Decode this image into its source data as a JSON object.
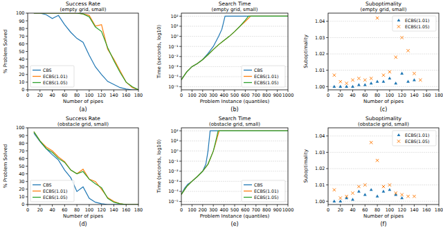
{
  "chart_data": [
    {
      "type": "line",
      "title": "Success Rate",
      "subtitle": "(empty grid, small)",
      "caption": "(a)",
      "x_label": "Number of pipes",
      "y_label": "% Problem Solved",
      "x": [
        10,
        20,
        30,
        40,
        50,
        60,
        70,
        80,
        90,
        100,
        110,
        120,
        130,
        140,
        150,
        160,
        170,
        180
      ],
      "series": [
        {
          "name": "CBS",
          "color": "#1f77b4",
          "values": [
            100,
            100,
            98,
            93,
            97,
            85,
            75,
            67,
            62,
            45,
            30,
            20,
            11,
            7,
            3,
            1,
            0,
            0
          ]
        },
        {
          "name": "ECBS(1.01)",
          "color": "#ff7f0e",
          "values": [
            100,
            100,
            100,
            100,
            100,
            100,
            100,
            100,
            99,
            97,
            83,
            85,
            53,
            40,
            25,
            10,
            3,
            0
          ]
        },
        {
          "name": "ECBS(1.05)",
          "color": "#2ca02c",
          "values": [
            100,
            100,
            100,
            100,
            100,
            100,
            100,
            100,
            99,
            95,
            82,
            76,
            55,
            38,
            23,
            10,
            4,
            0
          ]
        }
      ],
      "xlim": [
        0,
        180
      ],
      "xticks": [
        0,
        20,
        40,
        60,
        80,
        100,
        120,
        140,
        160,
        180
      ],
      "ylim": [
        0,
        100
      ],
      "yticks": [
        0,
        10,
        20,
        30,
        40,
        50,
        60,
        70,
        80,
        90,
        100
      ],
      "grid": false,
      "legend": "lower left"
    },
    {
      "type": "line",
      "title": "Search Time",
      "subtitle": "(empty grid, small)",
      "caption": "(b)",
      "x_label": "Problem Instance (quantiles)",
      "y_label": "Time (seconds, log10)",
      "log": "y",
      "series": [
        {
          "name": "CBS",
          "color": "#1f77b4",
          "x": [
            0,
            50,
            100,
            150,
            200,
            250,
            300,
            350,
            380,
            410,
            1000
          ],
          "values": [
            5e-05,
            0.0003,
            0.001,
            0.002,
            0.005,
            0.02,
            0.1,
            1,
            5,
            100,
            100
          ]
        },
        {
          "name": "ECBS(1.01)",
          "color": "#ff7f0e",
          "x": [
            0,
            50,
            100,
            150,
            200,
            250,
            300,
            350,
            400,
            450,
            500,
            550,
            600,
            650,
            1000
          ],
          "values": [
            5e-05,
            0.0003,
            0.001,
            0.002,
            0.005,
            0.015,
            0.05,
            0.15,
            0.4,
            1,
            3,
            10,
            30,
            100,
            100
          ]
        },
        {
          "name": "ECBS(1.05)",
          "color": "#2ca02c",
          "x": [
            0,
            50,
            100,
            150,
            200,
            250,
            300,
            350,
            400,
            450,
            500,
            550,
            600,
            630,
            1000
          ],
          "values": [
            5e-05,
            0.0003,
            0.001,
            0.002,
            0.005,
            0.015,
            0.05,
            0.15,
            0.4,
            1,
            3,
            10,
            40,
            100,
            100
          ]
        }
      ],
      "xlim": [
        0,
        1000
      ],
      "xticks": [
        0,
        100,
        200,
        300,
        400,
        500,
        600,
        700,
        800,
        900,
        1000
      ],
      "ylim": [
        5e-06,
        200
      ],
      "yticks": [
        {
          "value": 1e-05,
          "label": "10⁻⁵"
        },
        {
          "value": 0.0001,
          "label": "10⁻⁴"
        },
        {
          "value": 0.001,
          "label": "10⁻³"
        },
        {
          "value": 0.01,
          "label": "10⁻²"
        },
        {
          "value": 0.1,
          "label": "10⁻¹"
        },
        {
          "value": 1,
          "label": "10⁰"
        },
        {
          "value": 10,
          "label": "10¹"
        },
        {
          "value": 100,
          "label": "10²"
        }
      ],
      "grid": true,
      "legend": "lower right"
    },
    {
      "type": "scatter",
      "title": "Suboptimality",
      "subtitle": "(empty grid, small)",
      "caption": "(c)",
      "x_label": "Number of pipes",
      "y_label": "Suboptimality",
      "series": [
        {
          "name": "ECBS(1.01)",
          "color": "#1f77b4",
          "marker": "triangle",
          "x": [
            10,
            20,
            30,
            40,
            50,
            60,
            70,
            80,
            90,
            100,
            110,
            120,
            130,
            140
          ],
          "values": [
            1.0,
            1.0,
            1.0,
            1.0,
            1.001,
            1.001,
            1.002,
            1.003,
            1.003,
            1.005,
            1.002,
            1.008,
            1.003,
            1.004
          ]
        },
        {
          "name": "ECBS(1.05)",
          "color": "#ff7f0e",
          "marker": "x",
          "x": [
            10,
            20,
            30,
            40,
            50,
            60,
            70,
            80,
            90,
            100,
            110,
            120,
            130,
            140,
            150
          ],
          "values": [
            1.007,
            1.003,
            1.002,
            1.004,
            1.005,
            1.004,
            1.005,
            1.042,
            1.007,
            1.009,
            1.018,
            1.03,
            1.022,
            1.008,
            1.004
          ]
        }
      ],
      "xlim": [
        0,
        180
      ],
      "xticks": [
        0,
        20,
        40,
        60,
        80,
        100,
        120,
        140,
        160,
        180
      ],
      "ylim": [
        0.998,
        1.045
      ],
      "yticks": [
        {
          "value": 1,
          "label": "1.00"
        },
        1.01,
        1.02,
        1.03,
        1.04
      ],
      "grid": true,
      "legend": "upper right"
    },
    {
      "type": "line",
      "title": "Success Rate",
      "subtitle": "(obstacle grid, small)",
      "caption": "(d)",
      "x_label": "Number of pipes",
      "y_label": "% Problem Solved",
      "x": [
        10,
        20,
        30,
        40,
        50,
        60,
        70,
        80,
        90,
        100,
        110,
        120,
        130,
        140,
        150,
        160,
        170,
        180
      ],
      "series": [
        {
          "name": "CBS",
          "color": "#1f77b4",
          "values": [
            93,
            82,
            73,
            65,
            58,
            45,
            35,
            17,
            23,
            8,
            3,
            1,
            0,
            0,
            0,
            0,
            0,
            0
          ]
        },
        {
          "name": "ECBS(1.01)",
          "color": "#ff7f0e",
          "values": [
            95,
            83,
            75,
            70,
            62,
            56,
            45,
            40,
            46,
            33,
            30,
            20,
            9,
            4,
            1,
            0,
            0,
            0
          ]
        },
        {
          "name": "ECBS(1.05)",
          "color": "#2ca02c",
          "values": [
            95,
            83,
            73,
            68,
            60,
            55,
            45,
            40,
            43,
            33,
            27,
            22,
            8,
            3,
            1,
            0,
            0,
            0
          ]
        }
      ],
      "xlim": [
        0,
        180
      ],
      "xticks": [
        0,
        20,
        40,
        60,
        80,
        100,
        120,
        140,
        160,
        180
      ],
      "ylim": [
        0,
        100
      ],
      "yticks": [
        0,
        10,
        20,
        30,
        40,
        50,
        60,
        70,
        80,
        90,
        100
      ],
      "grid": false,
      "legend": "lower left"
    },
    {
      "type": "line",
      "title": "Search Time",
      "subtitle": "(obstacle grid, small)",
      "caption": "(e)",
      "x_label": "Problem Instance (quantiles)",
      "y_label": "Time (seconds, log10)",
      "log": "y",
      "series": [
        {
          "name": "CBS",
          "color": "#1f77b4",
          "x": [
            0,
            30,
            60,
            100,
            150,
            200,
            230,
            250,
            260,
            270,
            1000
          ],
          "values": [
            5e-05,
            0.0002,
            0.0005,
            0.001,
            0.003,
            0.01,
            0.05,
            1,
            10,
            100,
            100
          ]
        },
        {
          "name": "ECBS(1.01)",
          "color": "#ff7f0e",
          "x": [
            0,
            50,
            100,
            150,
            200,
            250,
            280,
            300,
            320,
            340,
            355,
            1000
          ],
          "values": [
            5e-05,
            0.0003,
            0.001,
            0.003,
            0.01,
            0.05,
            0.3,
            1,
            5,
            30,
            100,
            100
          ]
        },
        {
          "name": "ECBS(1.05)",
          "color": "#2ca02c",
          "x": [
            0,
            50,
            100,
            150,
            200,
            250,
            280,
            300,
            330,
            345,
            1000
          ],
          "values": [
            5e-05,
            0.0003,
            0.001,
            0.003,
            0.01,
            0.05,
            0.3,
            1,
            20,
            100,
            100
          ]
        }
      ],
      "xlim": [
        0,
        1000
      ],
      "xticks": [
        0,
        100,
        200,
        300,
        400,
        500,
        600,
        700,
        800,
        900,
        1000
      ],
      "ylim": [
        5e-06,
        200
      ],
      "yticks": [
        {
          "value": 1e-05,
          "label": "10⁻⁵"
        },
        {
          "value": 0.0001,
          "label": "10⁻⁴"
        },
        {
          "value": 0.001,
          "label": "10⁻³"
        },
        {
          "value": 0.01,
          "label": "10⁻²"
        },
        {
          "value": 0.1,
          "label": "10⁻¹"
        },
        {
          "value": 1,
          "label": "10⁰"
        },
        {
          "value": 10,
          "label": "10¹"
        },
        {
          "value": 100,
          "label": "10²"
        }
      ],
      "grid": true,
      "legend": "lower right"
    },
    {
      "type": "scatter",
      "title": "Suboptimality",
      "subtitle": "(obstacle grid, small)",
      "caption": "(f)",
      "x_label": "Number of pipes",
      "y_label": "Suboptimality",
      "series": [
        {
          "name": "ECBS(1.01)",
          "color": "#1f77b4",
          "marker": "triangle",
          "x": [
            10,
            20,
            30,
            40,
            50,
            60,
            70,
            80,
            90,
            100,
            110,
            120
          ],
          "values": [
            1.0,
            1.0,
            1.002,
            1.001,
            1.006,
            1.004,
            1.007,
            1.003,
            1.006,
            1.007,
            1.004,
            1.002
          ]
        },
        {
          "name": "ECBS(1.05)",
          "color": "#ff7f0e",
          "marker": "x",
          "x": [
            10,
            20,
            30,
            40,
            50,
            60,
            70,
            80,
            90,
            100,
            110,
            120,
            130,
            140
          ],
          "values": [
            1.007,
            1.002,
            1.003,
            1.005,
            1.009,
            1.01,
            1.036,
            1.025,
            1.009,
            1.01,
            1.005,
            1.004,
            1.003,
            1.003
          ]
        }
      ],
      "xlim": [
        0,
        180
      ],
      "xticks": [
        0,
        20,
        40,
        60,
        80,
        100,
        120,
        140,
        160,
        180
      ],
      "ylim": [
        0.998,
        1.045
      ],
      "yticks": [
        {
          "value": 1,
          "label": "1.00"
        },
        1.01,
        1.02,
        1.03,
        1.04
      ],
      "grid": true,
      "legend": "upper right"
    }
  ]
}
